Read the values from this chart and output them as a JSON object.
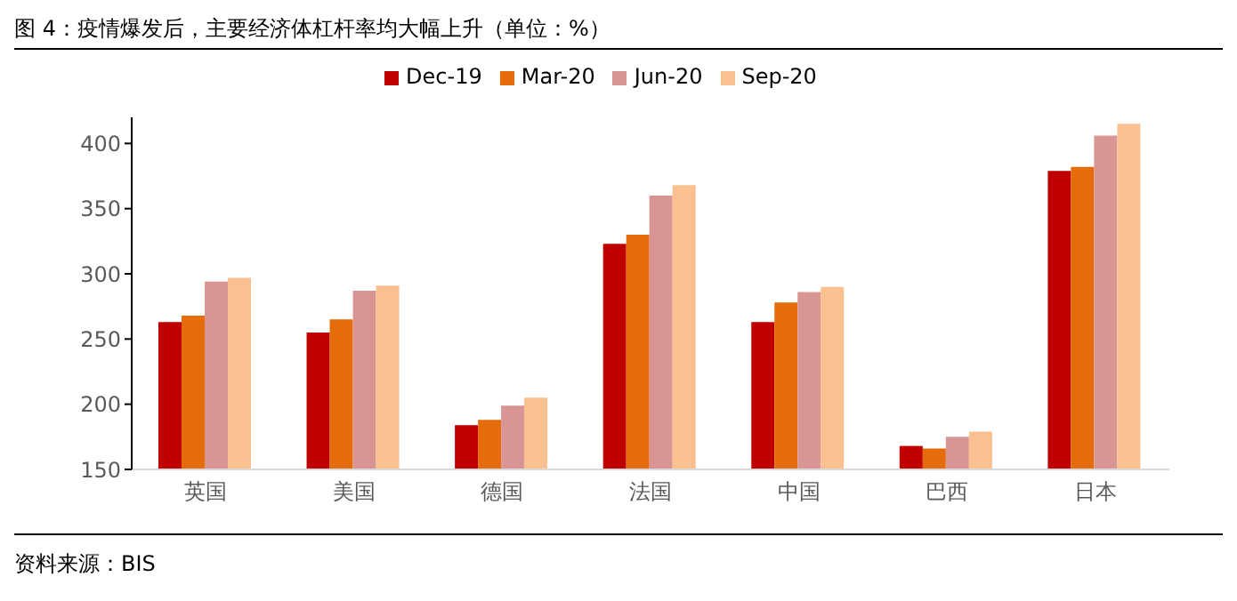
{
  "chart_data": {
    "type": "bar",
    "title": "图 4：疫情爆发后，主要经济体杠杆率均大幅上升（单位：%）",
    "categories": [
      "英国",
      "美国",
      "德国",
      "法国",
      "中国",
      "巴西",
      "日本"
    ],
    "series": [
      {
        "name": "Dec-19",
        "color": "#c00000",
        "values": [
          263,
          255,
          184,
          323,
          263,
          168,
          379
        ]
      },
      {
        "name": "Mar-20",
        "color": "#e46c0a",
        "values": [
          268,
          265,
          188,
          330,
          278,
          166,
          382
        ]
      },
      {
        "name": "Jun-20",
        "color": "#d99594",
        "values": [
          294,
          287,
          199,
          360,
          286,
          175,
          406
        ]
      },
      {
        "name": "Sep-20",
        "color": "#fac090",
        "values": [
          297,
          291,
          205,
          368,
          290,
          179,
          415
        ]
      }
    ],
    "ylim": [
      150,
      420
    ],
    "yticks": [
      150,
      200,
      250,
      300,
      350,
      400
    ],
    "grid": false,
    "legend": "top",
    "annotations": [
      "资料来源：BIS"
    ]
  }
}
